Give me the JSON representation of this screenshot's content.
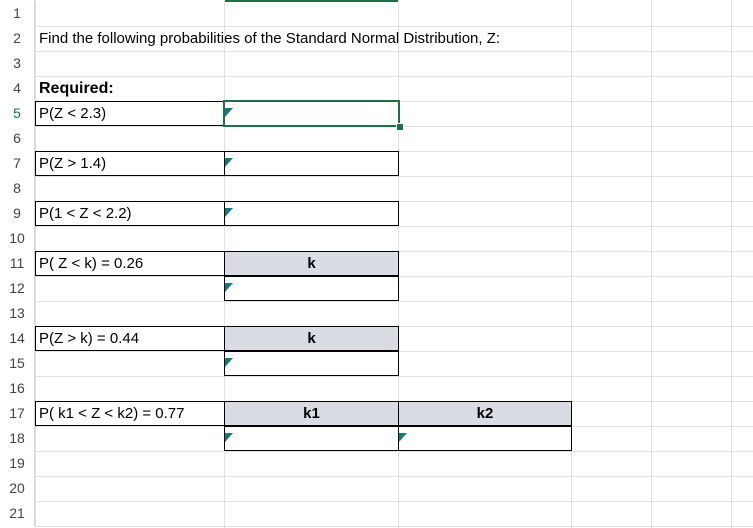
{
  "row_numbers": [
    "1",
    "2",
    "3",
    "4",
    "5",
    "6",
    "7",
    "8",
    "9",
    "10",
    "11",
    "12",
    "13",
    "14",
    "15",
    "16",
    "17",
    "18",
    "19",
    "20",
    "21"
  ],
  "sheet": {
    "instruction": "Find the following probabilities of the Standard Normal Distribution, Z:",
    "required_label": "Required:",
    "questions": {
      "q1": "P(Z < 2.3)",
      "q2": "P(Z > 1.4)",
      "q3": "P(1 < Z < 2.2)",
      "q4": "P( Z < k) = 0.26",
      "q5": "P(Z > k) = 0.44",
      "q6": "P( k1 < Z < k2) = 0.77"
    },
    "headers": {
      "k_a": "k",
      "k_b": "k",
      "k1": "k1",
      "k2": "k2"
    }
  },
  "colors": {
    "selection": "#1e7145",
    "header_fill": "#d9dce3",
    "comment_marker": "#127a78"
  }
}
